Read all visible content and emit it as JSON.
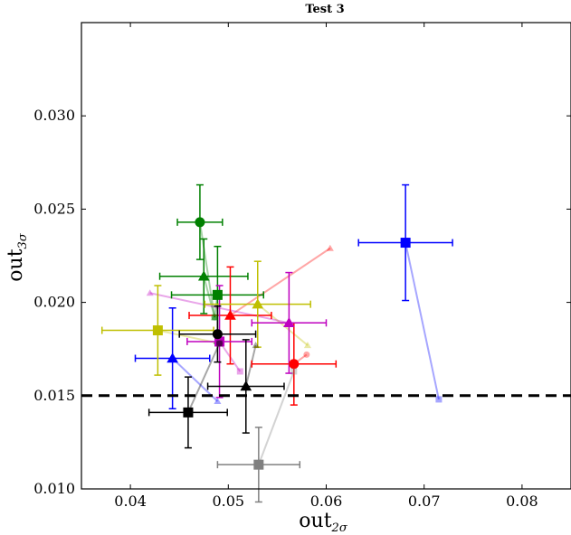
{
  "chart_data": {
    "type": "scatter",
    "title": "Test 3",
    "xlabel": {
      "base": "out",
      "sub": "2σ"
    },
    "ylabel": {
      "base": "out",
      "sub": "3σ"
    },
    "xlim": [
      0.035,
      0.085
    ],
    "ylim": [
      0.01,
      0.035
    ],
    "x_ticks": [
      0.04,
      0.05,
      0.06,
      0.07,
      0.08
    ],
    "x_tick_labels": [
      "0.04",
      "0.05",
      "0.06",
      "0.07",
      "0.08"
    ],
    "y_ticks": [
      0.01,
      0.015,
      0.02,
      0.025,
      0.03
    ],
    "y_tick_labels": [
      "0.010",
      "0.015",
      "0.020",
      "0.025",
      "0.030"
    ],
    "threshold": {
      "y": 0.015,
      "style": "dashed",
      "color": "#000000"
    },
    "points": [
      {
        "color": "#008000",
        "marker": "circle",
        "x": 0.0471,
        "y": 0.0243,
        "xerr": 0.0023,
        "yerr": 0.002,
        "to": [
          0.0486,
          0.0192
        ]
      },
      {
        "color": "#008000",
        "marker": "triangle",
        "x": 0.0475,
        "y": 0.0214,
        "xerr": 0.0045,
        "yerr": 0.002,
        "to": [
          0.0486,
          0.0192
        ]
      },
      {
        "color": "#008000",
        "marker": "square",
        "x": 0.0489,
        "y": 0.0204,
        "xerr": 0.0047,
        "yerr": 0.0026,
        "to": [
          0.0486,
          0.0192
        ]
      },
      {
        "color": "#0000ff",
        "marker": "square",
        "x": 0.0681,
        "y": 0.0232,
        "xerr": 0.0048,
        "yerr": 0.0031,
        "to": [
          0.0715,
          0.0148
        ]
      },
      {
        "color": "#0000ff",
        "marker": "triangle",
        "x": 0.0443,
        "y": 0.017,
        "xerr": 0.0038,
        "yerr": 0.0027,
        "to": [
          0.0489,
          0.0147
        ]
      },
      {
        "color": "#ff0000",
        "marker": "triangle",
        "x": 0.0502,
        "y": 0.0193,
        "xerr": 0.0042,
        "yerr": 0.0026,
        "to": [
          0.0604,
          0.0229
        ]
      },
      {
        "color": "#ff0000",
        "marker": "circle",
        "x": 0.0567,
        "y": 0.0167,
        "xerr": 0.0043,
        "yerr": 0.0022,
        "to": [
          0.058,
          0.0172
        ]
      },
      {
        "color": "#bfbf00",
        "marker": "triangle",
        "x": 0.053,
        "y": 0.0199,
        "xerr": 0.0054,
        "yerr": 0.0023,
        "to": [
          0.0581,
          0.0177
        ]
      },
      {
        "color": "#bfbf00",
        "marker": "square",
        "x": 0.0428,
        "y": 0.0185,
        "xerr": 0.0057,
        "yerr": 0.0024,
        "to": [
          0.0491,
          0.0178
        ]
      },
      {
        "color": "#bf00bf",
        "marker": "triangle",
        "x": 0.0562,
        "y": 0.0189,
        "xerr": 0.0038,
        "yerr": 0.0027,
        "to": [
          0.042,
          0.0205
        ]
      },
      {
        "color": "#bf00bf",
        "marker": "square",
        "x": 0.0491,
        "y": 0.0179,
        "xerr": 0.0033,
        "yerr": 0.003,
        "to": [
          0.0512,
          0.0163
        ]
      },
      {
        "color": "#000000",
        "marker": "circle",
        "x": 0.0489,
        "y": 0.0183,
        "xerr": 0.0039,
        "yerr": 0.0015,
        "to": [
          0.0491,
          0.0178
        ]
      },
      {
        "color": "#000000",
        "marker": "triangle",
        "x": 0.0518,
        "y": 0.0155,
        "xerr": 0.0039,
        "yerr": 0.0025,
        "to": [
          0.0528,
          0.0177
        ]
      },
      {
        "color": "#000000",
        "marker": "square",
        "x": 0.0459,
        "y": 0.0141,
        "xerr": 0.004,
        "yerr": 0.0019,
        "to": [
          0.0491,
          0.0178
        ]
      },
      {
        "color": "#808080",
        "marker": "square",
        "x": 0.0531,
        "y": 0.0113,
        "xerr": 0.0042,
        "yerr": 0.002,
        "to": [
          0.0567,
          0.0163
        ]
      }
    ]
  }
}
